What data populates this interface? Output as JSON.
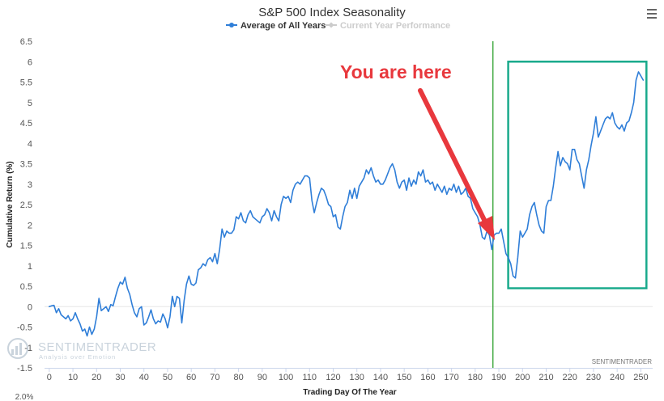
{
  "chart_data": {
    "type": "line",
    "title": "S&P 500 Index Seasonality",
    "xlabel": "Trading Day Of The Year",
    "ylabel": "Cumulative Return (%)",
    "xlim": [
      -2,
      255
    ],
    "ylim": [
      -1.5,
      6.5
    ],
    "x_ticks": [
      0,
      10,
      20,
      30,
      40,
      50,
      60,
      70,
      80,
      90,
      100,
      110,
      120,
      130,
      140,
      150,
      160,
      170,
      180,
      190,
      200,
      210,
      220,
      230,
      240,
      250
    ],
    "y_ticks": [
      "6.5",
      "6",
      "5.5",
      "5",
      "4.5",
      "4",
      "3.5",
      "3",
      "2.5",
      "2",
      "1.5",
      "1",
      "0.5",
      "0",
      "-0.5",
      "-1",
      "-1.5"
    ],
    "grid": false,
    "legend": [
      {
        "name": "Average of All Years",
        "color": "#2f7ed8",
        "active": true
      },
      {
        "name": "Current Year Performance",
        "color": "#cccccc",
        "active": false
      }
    ],
    "series": [
      {
        "name": "Average of All Years",
        "color": "#2f7ed8",
        "points": [
          [
            0,
            0
          ],
          [
            1,
            0.02
          ],
          [
            2,
            0.03
          ],
          [
            3,
            -0.15
          ],
          [
            4,
            -0.05
          ],
          [
            5,
            -0.2
          ],
          [
            6,
            -0.25
          ],
          [
            7,
            -0.3
          ],
          [
            8,
            -0.22
          ],
          [
            9,
            -0.35
          ],
          [
            10,
            -0.3
          ],
          [
            11,
            -0.15
          ],
          [
            12,
            -0.3
          ],
          [
            13,
            -0.42
          ],
          [
            14,
            -0.6
          ],
          [
            15,
            -0.55
          ],
          [
            16,
            -0.72
          ],
          [
            17,
            -0.5
          ],
          [
            18,
            -0.68
          ],
          [
            19,
            -0.55
          ],
          [
            20,
            -0.25
          ],
          [
            21,
            0.2
          ],
          [
            22,
            -0.1
          ],
          [
            23,
            -0.05
          ],
          [
            24,
            0.0
          ],
          [
            25,
            -0.12
          ],
          [
            26,
            0.05
          ],
          [
            27,
            0.02
          ],
          [
            28,
            0.25
          ],
          [
            29,
            0.45
          ],
          [
            30,
            0.6
          ],
          [
            31,
            0.55
          ],
          [
            32,
            0.72
          ],
          [
            33,
            0.45
          ],
          [
            34,
            0.3
          ],
          [
            35,
            0.05
          ],
          [
            36,
            -0.15
          ],
          [
            37,
            -0.25
          ],
          [
            38,
            -0.05
          ],
          [
            39,
            0.0
          ],
          [
            40,
            -0.45
          ],
          [
            41,
            -0.4
          ],
          [
            42,
            -0.25
          ],
          [
            43,
            -0.08
          ],
          [
            44,
            -0.3
          ],
          [
            45,
            -0.42
          ],
          [
            46,
            -0.35
          ],
          [
            47,
            -0.38
          ],
          [
            48,
            -0.18
          ],
          [
            49,
            -0.3
          ],
          [
            50,
            -0.52
          ],
          [
            51,
            -0.25
          ],
          [
            52,
            0.25
          ],
          [
            53,
            0.0
          ],
          [
            54,
            0.25
          ],
          [
            55,
            0.2
          ],
          [
            56,
            -0.4
          ],
          [
            57,
            0.15
          ],
          [
            58,
            0.55
          ],
          [
            59,
            0.75
          ],
          [
            60,
            0.55
          ],
          [
            61,
            0.52
          ],
          [
            62,
            0.58
          ],
          [
            63,
            0.9
          ],
          [
            64,
            0.95
          ],
          [
            65,
            1.05
          ],
          [
            66,
            1.0
          ],
          [
            67,
            1.15
          ],
          [
            68,
            1.2
          ],
          [
            69,
            1.1
          ],
          [
            70,
            1.3
          ],
          [
            71,
            1.05
          ],
          [
            72,
            1.4
          ],
          [
            73,
            1.9
          ],
          [
            74,
            1.7
          ],
          [
            75,
            1.85
          ],
          [
            76,
            1.8
          ],
          [
            77,
            1.8
          ],
          [
            78,
            1.88
          ],
          [
            79,
            2.2
          ],
          [
            80,
            2.15
          ],
          [
            81,
            2.3
          ],
          [
            82,
            2.1
          ],
          [
            83,
            2.05
          ],
          [
            84,
            2.25
          ],
          [
            85,
            2.35
          ],
          [
            86,
            2.2
          ],
          [
            87,
            2.15
          ],
          [
            88,
            2.1
          ],
          [
            89,
            2.05
          ],
          [
            90,
            2.2
          ],
          [
            91,
            2.25
          ],
          [
            92,
            2.4
          ],
          [
            93,
            2.3
          ],
          [
            94,
            2.1
          ],
          [
            95,
            2.35
          ],
          [
            96,
            2.2
          ],
          [
            97,
            2.1
          ],
          [
            98,
            2.5
          ],
          [
            99,
            2.7
          ],
          [
            100,
            2.65
          ],
          [
            101,
            2.7
          ],
          [
            102,
            2.55
          ],
          [
            103,
            2.85
          ],
          [
            104,
            3.0
          ],
          [
            105,
            3.05
          ],
          [
            106,
            3.0
          ],
          [
            107,
            3.1
          ],
          [
            108,
            3.2
          ],
          [
            109,
            3.2
          ],
          [
            110,
            3.15
          ],
          [
            111,
            2.6
          ],
          [
            112,
            2.3
          ],
          [
            113,
            2.55
          ],
          [
            114,
            2.75
          ],
          [
            115,
            2.9
          ],
          [
            116,
            2.85
          ],
          [
            117,
            2.7
          ],
          [
            118,
            2.5
          ],
          [
            119,
            2.45
          ],
          [
            120,
            2.2
          ],
          [
            121,
            2.25
          ],
          [
            122,
            1.95
          ],
          [
            123,
            1.9
          ],
          [
            124,
            2.2
          ],
          [
            125,
            2.45
          ],
          [
            126,
            2.55
          ],
          [
            127,
            2.85
          ],
          [
            128,
            2.65
          ],
          [
            129,
            2.9
          ],
          [
            130,
            2.65
          ],
          [
            131,
            2.95
          ],
          [
            132,
            3.05
          ],
          [
            133,
            3.15
          ],
          [
            134,
            3.35
          ],
          [
            135,
            3.25
          ],
          [
            136,
            3.4
          ],
          [
            137,
            3.2
          ],
          [
            138,
            3.05
          ],
          [
            139,
            3.1
          ],
          [
            140,
            3.0
          ],
          [
            141,
            3.0
          ],
          [
            142,
            3.1
          ],
          [
            143,
            3.25
          ],
          [
            144,
            3.4
          ],
          [
            145,
            3.5
          ],
          [
            146,
            3.35
          ],
          [
            147,
            3.05
          ],
          [
            148,
            2.9
          ],
          [
            149,
            3.05
          ],
          [
            150,
            3.1
          ],
          [
            151,
            2.85
          ],
          [
            152,
            3.15
          ],
          [
            153,
            2.95
          ],
          [
            154,
            3.1
          ],
          [
            155,
            3.0
          ],
          [
            156,
            3.3
          ],
          [
            157,
            3.2
          ],
          [
            158,
            3.35
          ],
          [
            159,
            3.05
          ],
          [
            160,
            3.1
          ],
          [
            161,
            3.0
          ],
          [
            162,
            3.05
          ],
          [
            163,
            2.85
          ],
          [
            164,
            3.0
          ],
          [
            165,
            2.9
          ],
          [
            166,
            2.8
          ],
          [
            167,
            2.95
          ],
          [
            168,
            2.75
          ],
          [
            169,
            2.9
          ],
          [
            170,
            2.85
          ],
          [
            171,
            3.0
          ],
          [
            172,
            2.8
          ],
          [
            173,
            2.95
          ],
          [
            174,
            2.75
          ],
          [
            175,
            2.8
          ],
          [
            176,
            2.9
          ],
          [
            177,
            2.7
          ],
          [
            178,
            2.65
          ],
          [
            179,
            2.4
          ],
          [
            180,
            2.3
          ],
          [
            181,
            2.2
          ],
          [
            182,
            2.0
          ],
          [
            183,
            1.7
          ],
          [
            184,
            1.65
          ],
          [
            185,
            1.85
          ],
          [
            186,
            1.75
          ],
          [
            187,
            1.4
          ],
          [
            188,
            1.75
          ],
          [
            189,
            1.8
          ],
          [
            190,
            1.8
          ],
          [
            191,
            1.9
          ],
          [
            192,
            1.6
          ],
          [
            193,
            1.3
          ],
          [
            194,
            1.2
          ],
          [
            195,
            1.05
          ],
          [
            196,
            0.75
          ],
          [
            197,
            0.7
          ],
          [
            198,
            1.2
          ],
          [
            199,
            1.85
          ],
          [
            200,
            1.7
          ],
          [
            201,
            1.8
          ],
          [
            202,
            1.9
          ],
          [
            203,
            2.25
          ],
          [
            204,
            2.45
          ],
          [
            205,
            2.55
          ],
          [
            206,
            2.25
          ],
          [
            207,
            2.0
          ],
          [
            208,
            1.85
          ],
          [
            209,
            1.8
          ],
          [
            210,
            2.45
          ],
          [
            211,
            2.6
          ],
          [
            212,
            2.6
          ],
          [
            213,
            2.95
          ],
          [
            214,
            3.4
          ],
          [
            215,
            3.8
          ],
          [
            216,
            3.45
          ],
          [
            217,
            3.65
          ],
          [
            218,
            3.55
          ],
          [
            219,
            3.5
          ],
          [
            220,
            3.35
          ],
          [
            221,
            3.85
          ],
          [
            222,
            3.85
          ],
          [
            223,
            3.6
          ],
          [
            224,
            3.5
          ],
          [
            225,
            3.2
          ],
          [
            226,
            2.9
          ],
          [
            227,
            3.35
          ],
          [
            228,
            3.6
          ],
          [
            229,
            3.95
          ],
          [
            230,
            4.25
          ],
          [
            231,
            4.65
          ],
          [
            232,
            4.15
          ],
          [
            233,
            4.3
          ],
          [
            234,
            4.45
          ],
          [
            235,
            4.6
          ],
          [
            236,
            4.65
          ],
          [
            237,
            4.6
          ],
          [
            238,
            4.75
          ],
          [
            239,
            4.5
          ],
          [
            240,
            4.4
          ],
          [
            241,
            4.35
          ],
          [
            242,
            4.45
          ],
          [
            243,
            4.3
          ],
          [
            244,
            4.5
          ],
          [
            245,
            4.55
          ],
          [
            246,
            4.75
          ],
          [
            247,
            5.0
          ],
          [
            248,
            5.55
          ],
          [
            249,
            5.75
          ],
          [
            250,
            5.65
          ],
          [
            251,
            5.55
          ]
        ]
      }
    ],
    "marker_line": {
      "x": 187.5,
      "color": "#2ca02c"
    },
    "annotation": {
      "text": "You are here",
      "color": "#e8383d"
    },
    "highlight_box": {
      "x_range": [
        196,
        251
      ],
      "y_range": [
        0.45,
        6.0
      ],
      "color": "#1aaa8c"
    }
  },
  "watermark": {
    "brand": "SENTIMENTRADER",
    "tagline": "Analysis over Emotion"
  },
  "credit": "SENTIMENTRADER",
  "bottom_left_label": "2.0%",
  "icons": {
    "menu": "hamburger-menu-icon",
    "watermark_logo": "chart-logo-icon"
  }
}
